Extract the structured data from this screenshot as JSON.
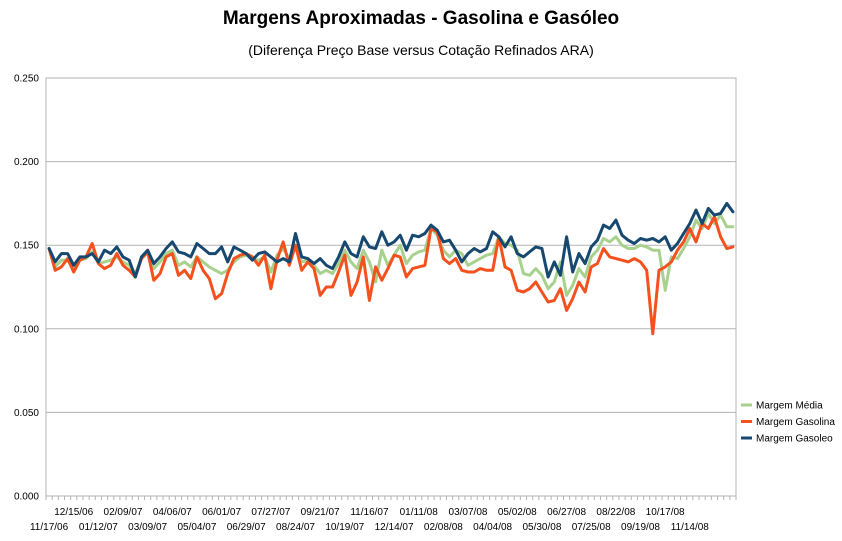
{
  "chart_data": {
    "type": "line",
    "title": "Margens Aproximadas - Gasolina e Gasóleo",
    "subtitle": "(Diferença Preço Base versus Cotação Refinados ARA)",
    "xlabel": "",
    "ylabel": "",
    "ylim": [
      0,
      0.25
    ],
    "y_ticks": [
      "0.000",
      "0.050",
      "0.100",
      "0.150",
      "0.200",
      "0.250"
    ],
    "grid": true,
    "legend_position": "right",
    "x_tick_labels_upper": [
      "12/15/06",
      "02/09/07",
      "04/06/07",
      "06/01/07",
      "07/27/07",
      "09/21/07",
      "11/16/07",
      "01/11/08",
      "03/07/08",
      "05/02/08",
      "06/27/08",
      "08/22/08",
      "10/17/08"
    ],
    "x_tick_labels_lower": [
      "11/17/06",
      "01/12/07",
      "03/09/07",
      "05/04/07",
      "06/29/07",
      "08/24/07",
      "10/19/07",
      "12/14/07",
      "02/08/08",
      "04/04/08",
      "05/30/08",
      "07/25/08",
      "09/19/08",
      "11/14/08"
    ],
    "series": [
      {
        "name": "Margem Média",
        "color": "#a9d18e",
        "values": [
          0.148,
          0.137,
          0.141,
          0.141,
          0.136,
          0.141,
          0.142,
          0.146,
          0.139,
          0.14,
          0.141,
          0.143,
          0.14,
          0.138,
          0.133,
          0.142,
          0.146,
          0.136,
          0.14,
          0.145,
          0.147,
          0.138,
          0.14,
          0.137,
          0.143,
          0.14,
          0.137,
          0.135,
          0.133,
          0.135,
          0.14,
          0.143,
          0.144,
          0.142,
          0.141,
          0.143,
          0.134,
          0.144,
          0.148,
          0.142,
          0.15,
          0.14,
          0.141,
          0.138,
          0.133,
          0.135,
          0.133,
          0.139,
          0.147,
          0.14,
          0.136,
          0.147,
          0.14,
          0.128,
          0.147,
          0.138,
          0.144,
          0.15,
          0.139,
          0.144,
          0.146,
          0.147,
          0.16,
          0.156,
          0.147,
          0.143,
          0.147,
          0.145,
          0.138,
          0.14,
          0.142,
          0.144,
          0.145,
          0.155,
          0.151,
          0.15,
          0.147,
          0.133,
          0.132,
          0.136,
          0.132,
          0.124,
          0.128,
          0.14,
          0.12,
          0.126,
          0.136,
          0.131,
          0.143,
          0.147,
          0.154,
          0.152,
          0.155,
          0.15,
          0.148,
          0.148,
          0.15,
          0.149,
          0.147,
          0.147,
          0.123,
          0.143,
          0.142,
          0.148,
          0.155,
          0.165,
          0.16,
          0.169,
          0.163,
          0.168,
          0.161,
          0.161
        ]
      },
      {
        "name": "Margem Gasolina",
        "color": "#f4511e",
        "values": [
          0.148,
          0.135,
          0.137,
          0.142,
          0.134,
          0.141,
          0.143,
          0.151,
          0.139,
          0.136,
          0.138,
          0.145,
          0.138,
          0.135,
          0.131,
          0.142,
          0.146,
          0.129,
          0.133,
          0.143,
          0.145,
          0.132,
          0.135,
          0.13,
          0.143,
          0.135,
          0.13,
          0.118,
          0.121,
          0.133,
          0.142,
          0.144,
          0.145,
          0.143,
          0.138,
          0.144,
          0.124,
          0.141,
          0.152,
          0.138,
          0.15,
          0.135,
          0.14,
          0.136,
          0.12,
          0.125,
          0.125,
          0.134,
          0.144,
          0.12,
          0.128,
          0.143,
          0.117,
          0.137,
          0.129,
          0.136,
          0.144,
          0.143,
          0.131,
          0.136,
          0.137,
          0.138,
          0.16,
          0.158,
          0.142,
          0.139,
          0.142,
          0.135,
          0.134,
          0.134,
          0.136,
          0.135,
          0.135,
          0.155,
          0.137,
          0.135,
          0.123,
          0.122,
          0.124,
          0.128,
          0.122,
          0.116,
          0.117,
          0.124,
          0.111,
          0.118,
          0.128,
          0.122,
          0.137,
          0.139,
          0.148,
          0.143,
          0.142,
          0.141,
          0.14,
          0.142,
          0.14,
          0.135,
          0.097,
          0.135,
          0.137,
          0.14,
          0.147,
          0.152,
          0.16,
          0.152,
          0.163,
          0.16,
          0.167,
          0.155,
          0.148,
          0.149
        ]
      },
      {
        "name": "Margem Gasoleo",
        "color": "#17486f",
        "values": [
          0.148,
          0.14,
          0.145,
          0.145,
          0.138,
          0.143,
          0.143,
          0.145,
          0.14,
          0.147,
          0.145,
          0.149,
          0.143,
          0.141,
          0.131,
          0.143,
          0.147,
          0.139,
          0.143,
          0.148,
          0.152,
          0.146,
          0.145,
          0.143,
          0.151,
          0.148,
          0.145,
          0.145,
          0.149,
          0.14,
          0.149,
          0.147,
          0.145,
          0.141,
          0.145,
          0.146,
          0.143,
          0.14,
          0.142,
          0.14,
          0.157,
          0.143,
          0.142,
          0.139,
          0.142,
          0.138,
          0.136,
          0.143,
          0.152,
          0.145,
          0.143,
          0.155,
          0.149,
          0.148,
          0.158,
          0.15,
          0.152,
          0.156,
          0.147,
          0.156,
          0.155,
          0.157,
          0.162,
          0.159,
          0.152,
          0.153,
          0.147,
          0.14,
          0.145,
          0.148,
          0.146,
          0.148,
          0.158,
          0.155,
          0.149,
          0.155,
          0.145,
          0.143,
          0.146,
          0.149,
          0.148,
          0.131,
          0.14,
          0.132,
          0.155,
          0.134,
          0.145,
          0.139,
          0.149,
          0.153,
          0.162,
          0.16,
          0.165,
          0.156,
          0.153,
          0.151,
          0.154,
          0.153,
          0.154,
          0.152,
          0.155,
          0.147,
          0.151,
          0.157,
          0.163,
          0.171,
          0.163,
          0.172,
          0.168,
          0.169,
          0.175,
          0.17
        ]
      }
    ]
  }
}
